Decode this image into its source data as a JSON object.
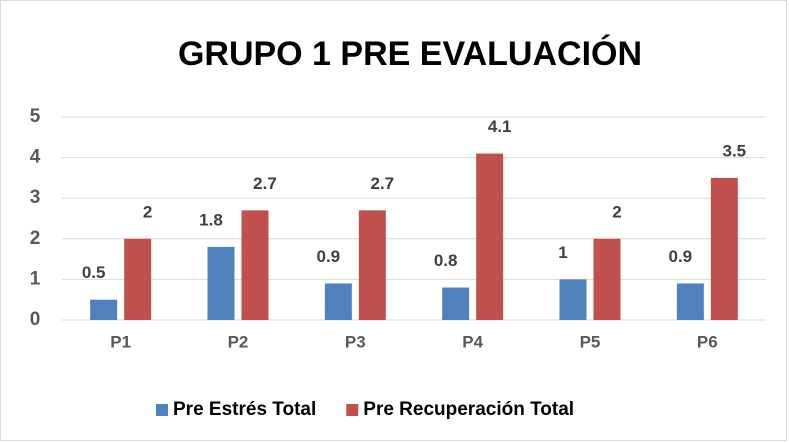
{
  "chart_data": {
    "type": "bar",
    "title": "GRUPO 1 PRE EVALUACIÓN",
    "categories": [
      "P1",
      "P2",
      "P3",
      "P4",
      "P5",
      "P6"
    ],
    "series": [
      {
        "name": "Pre Estrés Total",
        "color": "#4f81bd",
        "values": [
          0.5,
          1.8,
          0.9,
          0.8,
          1,
          0.9
        ]
      },
      {
        "name": "Pre Recuperación Total",
        "color": "#c0504d",
        "values": [
          2,
          2.7,
          2.7,
          4.1,
          2,
          3.5
        ]
      }
    ],
    "ylim": [
      0,
      5
    ],
    "yticks": [
      0,
      1,
      2,
      3,
      4,
      5
    ],
    "grid": true,
    "legend": "bottom"
  }
}
